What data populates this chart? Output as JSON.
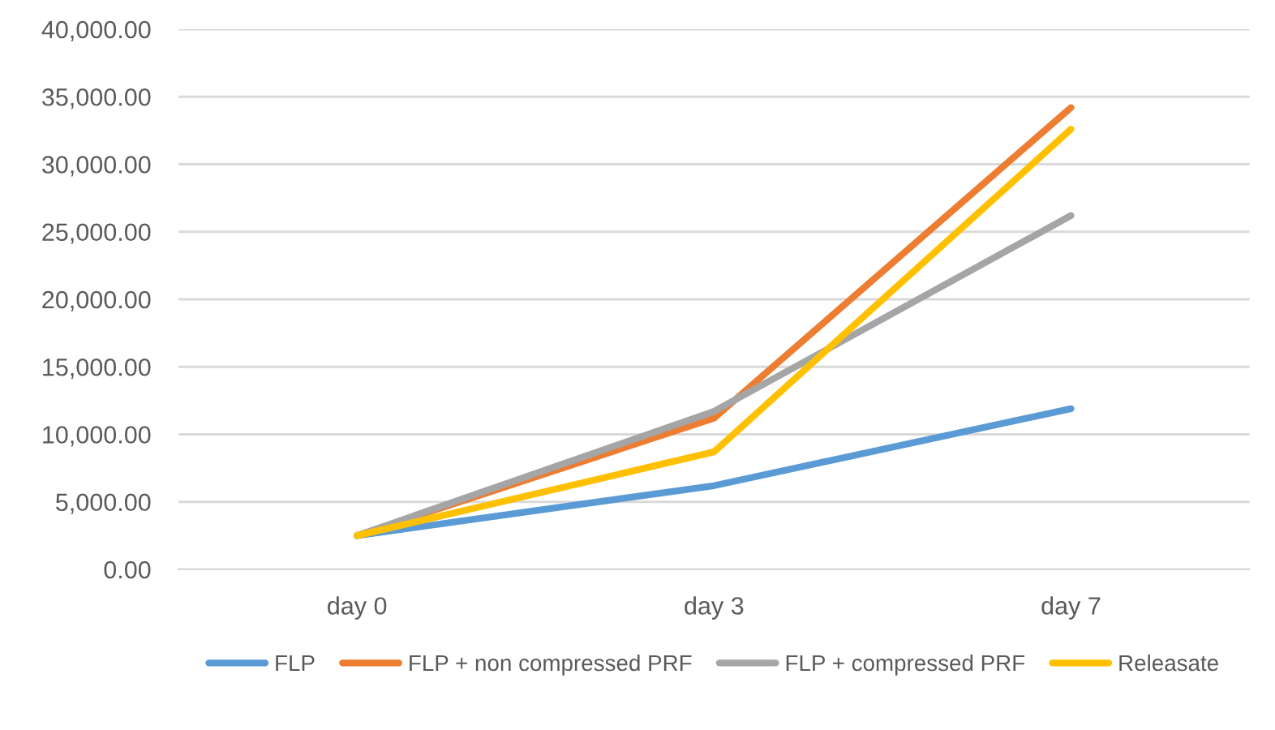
{
  "chart_data": {
    "type": "line",
    "categories": [
      "day 0",
      "day 3",
      "day 7"
    ],
    "series": [
      {
        "name": "FLP",
        "color": "#5b9bd5",
        "values": [
          2500,
          6200,
          11900
        ]
      },
      {
        "name": "FLP + non compressed PRF",
        "color": "#ed7d31",
        "values": [
          2500,
          11200,
          34200
        ]
      },
      {
        "name": "FLP + compressed PRF",
        "color": "#a5a5a5",
        "values": [
          2500,
          11700,
          26200
        ]
      },
      {
        "name": "Releasate",
        "color": "#ffc000",
        "values": [
          2500,
          8700,
          32600
        ]
      }
    ],
    "ylim": [
      0,
      40000
    ],
    "yticks": [
      {
        "value": 0,
        "label": "0.00"
      },
      {
        "value": 5000,
        "label": "5,000.00"
      },
      {
        "value": 10000,
        "label": "10,000.00"
      },
      {
        "value": 15000,
        "label": "15,000.00"
      },
      {
        "value": 20000,
        "label": "20,000.00"
      },
      {
        "value": 25000,
        "label": "25,000.00"
      },
      {
        "value": 30000,
        "label": "30,000.00"
      },
      {
        "value": 35000,
        "label": "35,000.00"
      },
      {
        "value": 40000,
        "label": "40,000.00"
      }
    ],
    "grid": "y",
    "legend": "bottom",
    "marker": "none",
    "line_style": "solid"
  }
}
